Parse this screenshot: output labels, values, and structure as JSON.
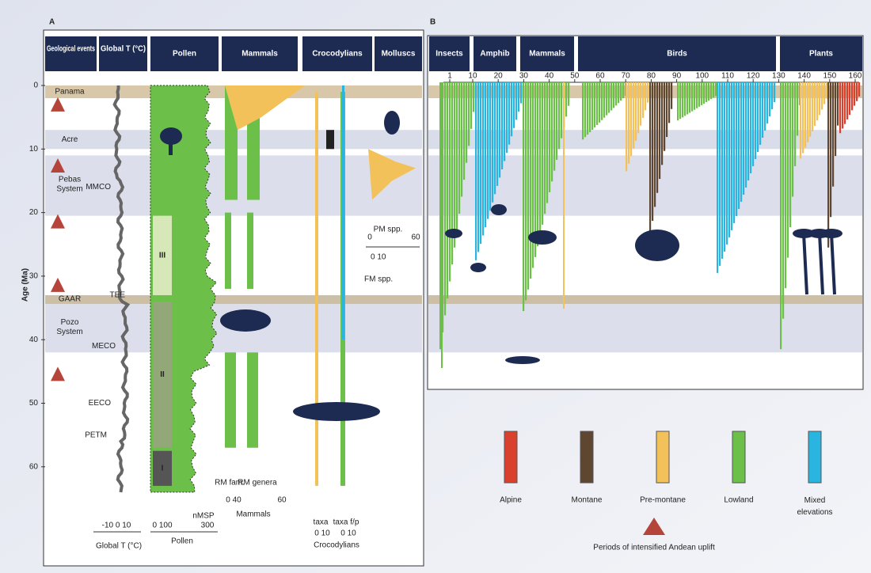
{
  "panel_a": {
    "label": "A",
    "headers": [
      "Geological events",
      "Global T (°C)",
      "Pollen",
      "Mammals",
      "Crocodylians",
      "Molluscs"
    ],
    "age_axis": {
      "title": "Age (Ma)",
      "ticks": [
        0,
        10,
        20,
        30,
        40,
        50,
        60
      ]
    },
    "geological_events": [
      "Panama",
      "Acre",
      "Pebas System",
      "GAAR",
      "Pozo System"
    ],
    "climate_events": [
      "MMCO",
      "TEE",
      "MECO",
      "EECO",
      "PETM"
    ],
    "pollen_zones": [
      "III",
      "II",
      "I"
    ],
    "mammals": {
      "series": [
        "RM fam.",
        "RM genera"
      ],
      "scale_1": "0 40",
      "scale_2": "60",
      "caption": "Mammals"
    },
    "molluscs": {
      "pm_label": "PM spp.",
      "pm_scale_0": "0",
      "pm_scale_1": "60",
      "fm_scale": "0 10",
      "fm_label": "FM spp."
    },
    "crocodylians": {
      "series": [
        "taxa",
        "taxa f/p"
      ],
      "scale_1": "0 10",
      "scale_2": "0 10",
      "caption": "Crocodylians"
    },
    "bottom_scales": {
      "temp_scale": "-10 0 10",
      "temp_caption": "Global T (°C)",
      "pollen_scale": "0 100",
      "pollen_unit": "nMSP",
      "pollen_max": "300",
      "pollen_caption": "Pollen"
    }
  },
  "panel_b": {
    "label": "B",
    "headers": [
      "Insects",
      "Amphib",
      "Mammals",
      "Birds",
      "Plants"
    ],
    "xticks": [
      1,
      10,
      20,
      30,
      40,
      50,
      60,
      70,
      80,
      90,
      100,
      110,
      120,
      130,
      140,
      150,
      160
    ],
    "xlim": [
      1,
      160
    ]
  },
  "legend": {
    "items": [
      {
        "name": "Alpine",
        "color": "#d9412e"
      },
      {
        "name": "Montane",
        "color": "#5e4630"
      },
      {
        "name": "Pre-montane",
        "color": "#f2c15a"
      },
      {
        "name": "Lowland",
        "color": "#6cc04a"
      },
      {
        "name": "Mixed elevations",
        "color": "#29b5e0"
      }
    ],
    "uplift_note": "Periods of intensified Andean uplift"
  }
}
